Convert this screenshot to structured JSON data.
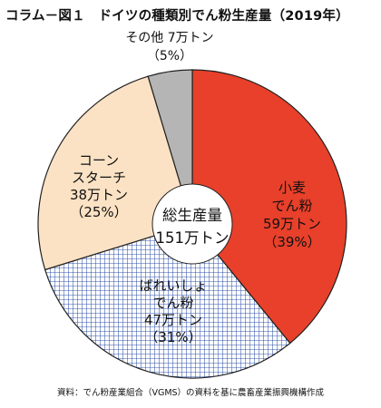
{
  "title": "コラム－図１　ドイツの種類別でん粉生産量（2019年）",
  "source": "資料：でん粉産業組合（VGMS）の資料を基に農畜産業振興機構作成",
  "center_label": {
    "line1": "総生産量",
    "line2": "151万トン"
  },
  "colors": {
    "wheat": "#e8402a",
    "potato_bg": "#ffffff",
    "potato_pattern": "#3355a8",
    "corn": "#fbe2c4",
    "other": "#b5b5b5",
    "outline": "#222222"
  },
  "chart_data": {
    "type": "pie",
    "title": "コラム－図１　ドイツの種類別でん粉生産量（2019年）",
    "total": {
      "label": "総生産量",
      "value": 151,
      "unit": "万トン"
    },
    "unit": "万トン",
    "slices": [
      {
        "key": "wheat",
        "label_lines": [
          "小麦",
          "でん粉",
          "59万トン",
          "（39%）"
        ],
        "value": 59,
        "percent": 39
      },
      {
        "key": "potato",
        "label_lines": [
          "ばれいしょ",
          "でん粉",
          "47万トン",
          "（31%）"
        ],
        "value": 47,
        "percent": 31
      },
      {
        "key": "corn",
        "label_lines": [
          "コーン",
          "スターチ",
          "38万トン",
          "（25%）"
        ],
        "value": 38,
        "percent": 25
      },
      {
        "key": "other",
        "label_lines": [
          "その他 7万トン",
          "（5%）"
        ],
        "value": 7,
        "percent": 5
      }
    ],
    "start": "12 o'clock",
    "direction": "clockwise"
  }
}
